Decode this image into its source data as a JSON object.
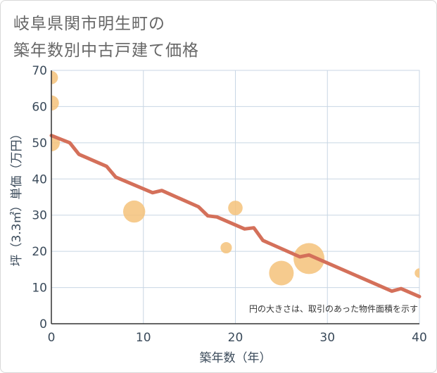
{
  "title_line1": "岐阜県関市明生町の",
  "title_line2": "築年数別中古戸建て価格",
  "chart_data": {
    "type": "scatter",
    "xlabel": "築年数（年）",
    "ylabel": "坪（3.3㎡）単価（万円）",
    "xlim": [
      0,
      40
    ],
    "ylim": [
      0,
      70
    ],
    "xticks": [
      0,
      10,
      20,
      30,
      40
    ],
    "yticks": [
      0,
      10,
      20,
      30,
      40,
      50,
      60,
      70
    ],
    "grid": true,
    "note": "円の大きさは、取引のあった物件面積を示す",
    "colors": {
      "bubble": "#f5c27a",
      "line": "#d4705a",
      "grid": "#c8d6e4"
    },
    "bubbles": [
      {
        "x": 0,
        "y": 68,
        "size": 1.2
      },
      {
        "x": 0,
        "y": 61,
        "size": 1.5
      },
      {
        "x": 0,
        "y": 50,
        "size": 1.8
      },
      {
        "x": 9,
        "y": 31,
        "size": 2.6
      },
      {
        "x": 19,
        "y": 21,
        "size": 0.9
      },
      {
        "x": 20,
        "y": 32,
        "size": 1.4
      },
      {
        "x": 25,
        "y": 14,
        "size": 3.0
      },
      {
        "x": 28,
        "y": 18,
        "size": 4.0
      },
      {
        "x": 40,
        "y": 14,
        "size": 0.6
      }
    ],
    "trend": [
      [
        0,
        52
      ],
      [
        2,
        50
      ],
      [
        3,
        46.8
      ],
      [
        6,
        43.5
      ],
      [
        7,
        40.5
      ],
      [
        11,
        36.2
      ],
      [
        12,
        36.8
      ],
      [
        16,
        32.3
      ],
      [
        17,
        29.8
      ],
      [
        18,
        29.5
      ],
      [
        21,
        26.2
      ],
      [
        22,
        26.5
      ],
      [
        23,
        23
      ],
      [
        27,
        18.5
      ],
      [
        28,
        19
      ],
      [
        37,
        9
      ],
      [
        38,
        9.7
      ],
      [
        40,
        7.5
      ]
    ]
  }
}
